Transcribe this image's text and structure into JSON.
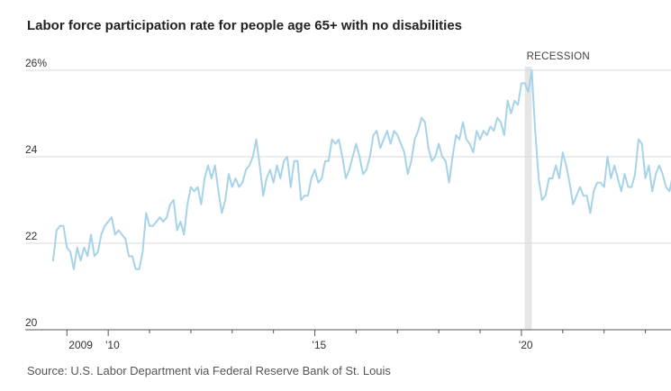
{
  "title": "Labor force participation rate for people age 65+ with no disabilities",
  "source": "Source: U.S. Labor Department via Federal Reserve Bank of St. Louis",
  "colors": {
    "line": "#a6d3e8",
    "recession": "#e6e6e6",
    "grid": "#d9d9d9",
    "axis": "#555555"
  },
  "chart_data": {
    "type": "line",
    "title": "Labor force participation rate for people age 65+ with no disabilities",
    "ylim": [
      20,
      26
    ],
    "yticks": [
      {
        "value": 20,
        "label": "20"
      },
      {
        "value": 22,
        "label": "22"
      },
      {
        "value": 24,
        "label": "24"
      },
      {
        "value": 26,
        "label": "26%"
      }
    ],
    "xlim": [
      2008.58,
      2023.62
    ],
    "xticks": [
      {
        "value": 2009,
        "label": "2009"
      },
      {
        "value": 2010,
        "label": "'10"
      },
      {
        "value": 2015,
        "label": "'15"
      },
      {
        "value": 2020,
        "label": "'20"
      }
    ],
    "x_minor_ticks": [
      2011,
      2012,
      2013,
      2014,
      2016,
      2017,
      2018,
      2019,
      2021,
      2022,
      2023
    ],
    "grid": true,
    "annotations": [
      {
        "type": "shaded_region",
        "label": "RECESSION",
        "x_start": 2020.08,
        "x_end": 2020.25
      }
    ],
    "series": [
      {
        "start": "2008-09",
        "frequency": "monthly",
        "values": [
          21.6,
          22.3,
          22.4,
          22.4,
          21.9,
          21.8,
          21.4,
          21.9,
          21.6,
          21.9,
          21.7,
          22.2,
          21.7,
          21.8,
          22.2,
          22.4,
          22.5,
          22.6,
          22.2,
          22.3,
          22.2,
          22.1,
          21.7,
          21.7,
          21.4,
          21.4,
          21.8,
          22.7,
          22.4,
          22.4,
          22.5,
          22.6,
          22.5,
          22.6,
          22.9,
          23.0,
          22.3,
          22.5,
          22.2,
          22.9,
          23.3,
          23.2,
          23.3,
          22.9,
          23.5,
          23.8,
          23.5,
          23.8,
          23.2,
          22.7,
          23.0,
          23.6,
          23.3,
          23.5,
          23.3,
          23.4,
          23.7,
          23.8,
          24.0,
          24.4,
          23.8,
          23.1,
          23.5,
          23.7,
          23.4,
          23.8,
          23.5,
          23.9,
          24.0,
          23.3,
          23.9,
          23.9,
          23.0,
          23.1,
          23.1,
          23.5,
          23.7,
          23.4,
          23.5,
          23.9,
          23.9,
          24.4,
          24.3,
          24.4,
          24.0,
          23.5,
          23.7,
          24.0,
          24.3,
          24.0,
          23.6,
          23.7,
          24.0,
          24.5,
          24.6,
          24.2,
          24.4,
          24.6,
          24.3,
          24.6,
          24.5,
          24.3,
          24.1,
          23.6,
          23.9,
          24.4,
          24.6,
          24.9,
          24.8,
          24.2,
          23.9,
          24.0,
          24.3,
          24.0,
          23.9,
          23.4,
          24.0,
          24.5,
          24.4,
          24.8,
          24.4,
          24.3,
          24.1,
          24.6,
          24.4,
          24.6,
          24.5,
          24.7,
          24.6,
          24.9,
          24.8,
          24.5,
          25.3,
          25.0,
          25.3,
          25.2,
          25.7,
          25.7,
          25.5,
          26.0,
          24.6,
          23.5,
          23.0,
          23.1,
          23.5,
          23.5,
          23.8,
          23.5,
          24.1,
          23.8,
          23.4,
          22.9,
          23.1,
          23.3,
          23.1,
          23.1,
          22.7,
          23.2,
          23.4,
          23.4,
          23.3,
          24.0,
          23.5,
          23.8,
          23.5,
          23.2,
          23.6,
          23.3,
          23.3,
          23.6,
          24.4,
          24.3,
          23.5,
          23.8,
          23.2,
          23.6,
          23.8,
          23.6,
          23.3,
          23.2,
          23.6,
          23.7
        ]
      }
    ]
  }
}
